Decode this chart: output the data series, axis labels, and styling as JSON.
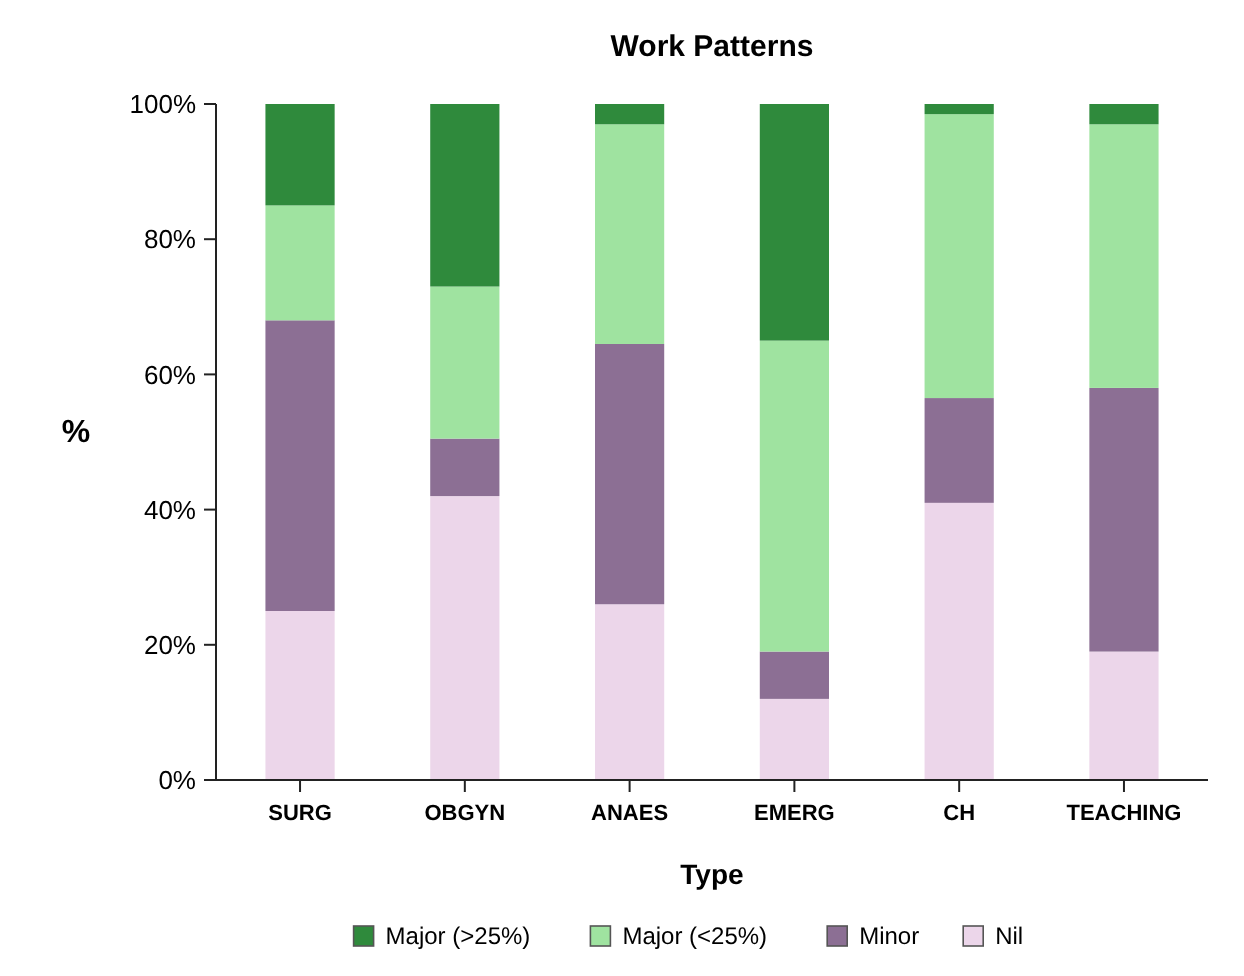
{
  "chart_data": {
    "type": "bar",
    "title": "Work Patterns",
    "xlabel": "Type",
    "ylabel": "%",
    "stacked": true,
    "categories": [
      "SURG",
      "OBGYN",
      "ANAES",
      "EMERG",
      "CH",
      "TEACHING"
    ],
    "series": [
      {
        "name": "Nil",
        "color": "#ecd6ea",
        "values": [
          25,
          42,
          26,
          12,
          41,
          19
        ]
      },
      {
        "name": "Minor",
        "color": "#8c6f94",
        "values": [
          43,
          8.5,
          38.5,
          7,
          15.5,
          39
        ]
      },
      {
        "name": "Major (<25%)",
        "color": "#9fe3a0",
        "values": [
          17,
          22.5,
          32.5,
          46,
          42,
          39
        ]
      },
      {
        "name": "Major (>25%)",
        "color": "#2f8a3c",
        "values": [
          15,
          27,
          3,
          35,
          1.5,
          3
        ]
      }
    ],
    "ylim": [
      0,
      100
    ],
    "yticks": [
      {
        "value": 0,
        "label": "0%"
      },
      {
        "value": 20,
        "label": "20%"
      },
      {
        "value": 40,
        "label": "40%"
      },
      {
        "value": 60,
        "label": "60%"
      },
      {
        "value": 80,
        "label": "80%"
      },
      {
        "value": 100,
        "label": "100%"
      }
    ],
    "legend": "bottom"
  }
}
